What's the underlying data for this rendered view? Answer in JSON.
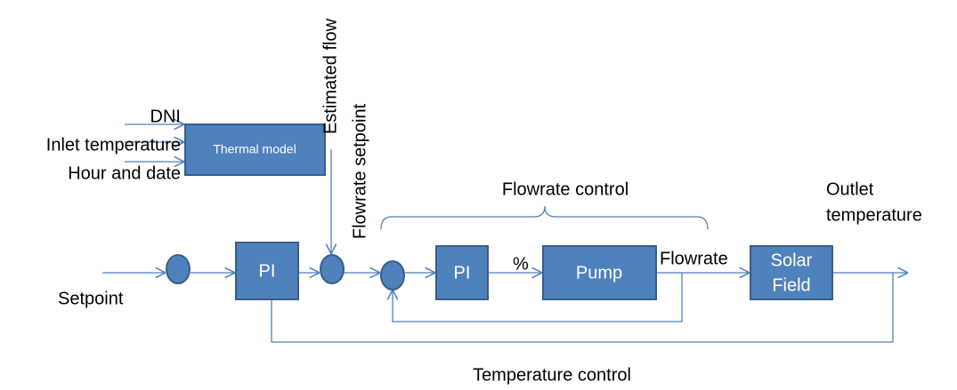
{
  "inputs": [
    "DNI",
    "Inlet temperature",
    "Hour and date"
  ],
  "thermal_model": "Thermal model",
  "estimated_flow": "Estimated flow",
  "flowrate_setpoint": "Flowrate setpoint",
  "setpoint": "Setpoint",
  "blocks": {
    "pi_outer": "PI",
    "pi_inner": "PI",
    "pump": "Pump",
    "solar_field": [
      "Solar",
      "Field"
    ]
  },
  "percent": "%",
  "flowrate": "Flowrate",
  "outlet_temperature": [
    "Outlet",
    "temperature"
  ],
  "flowrate_control": "Flowrate control",
  "temperature_control": "Temperature control"
}
